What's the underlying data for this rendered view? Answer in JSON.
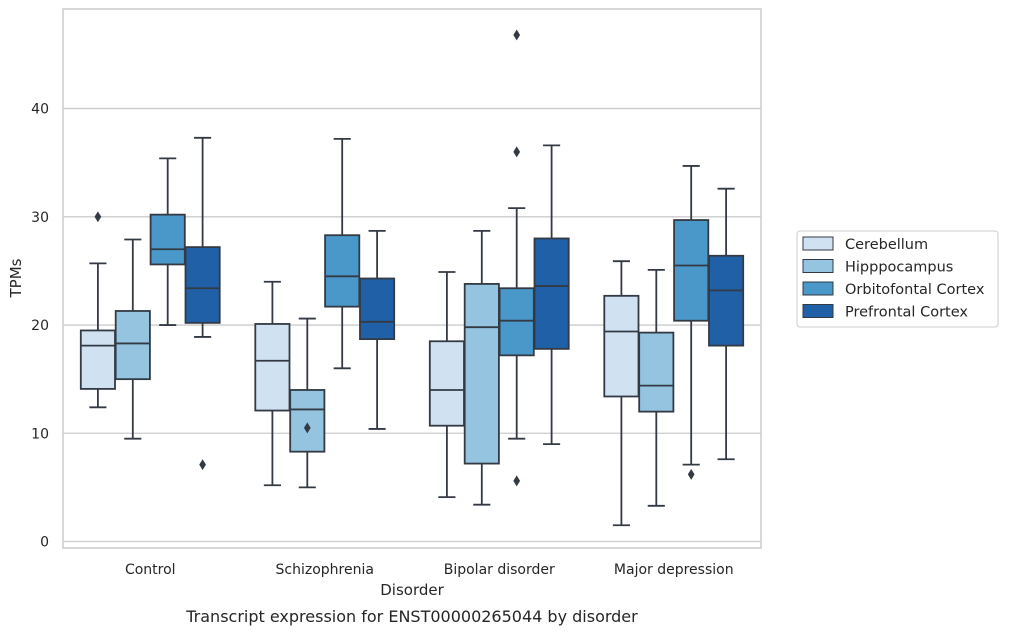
{
  "chart_data": {
    "type": "box",
    "title": "Transcript expression for ENST00000265044 by disorder",
    "xlabel": "Disorder",
    "ylabel": "TPMs",
    "ylim": [
      -0.6,
      49.2
    ],
    "yticks": [
      0,
      10,
      20,
      30,
      40
    ],
    "grid": "horizontal",
    "legend": "right",
    "categories": [
      "Control",
      "Schizophrenia",
      "Bipolar disorder",
      "Major depression"
    ],
    "series": [
      {
        "name": "Cerebellum",
        "color": "#d0e1f2",
        "boxes": [
          {
            "whislo": 12.4,
            "q1": 14.1,
            "med": 18.1,
            "q3": 19.5,
            "whishi": 25.7,
            "fliers": [
              30.0
            ]
          },
          {
            "whislo": 5.2,
            "q1": 12.1,
            "med": 16.7,
            "q3": 20.1,
            "whishi": 24.0,
            "fliers": []
          },
          {
            "whislo": 4.1,
            "q1": 10.7,
            "med": 14.0,
            "q3": 18.5,
            "whishi": 24.9,
            "fliers": []
          },
          {
            "whislo": 1.5,
            "q1": 13.4,
            "med": 19.4,
            "q3": 22.7,
            "whishi": 25.9,
            "fliers": []
          }
        ]
      },
      {
        "name": "Hipppocampus",
        "color": "#94c4df",
        "boxes": [
          {
            "whislo": 9.5,
            "q1": 15.0,
            "med": 18.3,
            "q3": 21.3,
            "whishi": 27.9,
            "fliers": []
          },
          {
            "whislo": 5.0,
            "q1": 8.3,
            "med": 12.2,
            "q3": 14.0,
            "whishi": 20.6,
            "fliers": [
              10.5
            ]
          },
          {
            "whislo": 3.4,
            "q1": 7.2,
            "med": 19.8,
            "q3": 23.8,
            "whishi": 28.7,
            "fliers": []
          },
          {
            "whislo": 3.3,
            "q1": 12.0,
            "med": 14.4,
            "q3": 19.3,
            "whishi": 25.1,
            "fliers": []
          }
        ]
      },
      {
        "name": "Orbitofontal Cortex",
        "color": "#4a98c9",
        "boxes": [
          {
            "whislo": 20.0,
            "q1": 25.6,
            "med": 27.0,
            "q3": 30.2,
            "whishi": 35.4,
            "fliers": []
          },
          {
            "whislo": 16.0,
            "q1": 21.7,
            "med": 24.5,
            "q3": 28.3,
            "whishi": 37.2,
            "fliers": []
          },
          {
            "whislo": 9.5,
            "q1": 17.2,
            "med": 20.4,
            "q3": 23.4,
            "whishi": 30.8,
            "fliers": [
              36.0,
              5.6,
              46.8
            ]
          },
          {
            "whislo": 7.1,
            "q1": 20.4,
            "med": 25.5,
            "q3": 29.7,
            "whishi": 34.7,
            "fliers": [
              6.2
            ]
          }
        ]
      },
      {
        "name": "Prefrontal Cortex",
        "color": "#2060a7",
        "boxes": [
          {
            "whislo": 18.9,
            "q1": 20.2,
            "med": 23.4,
            "q3": 27.2,
            "whishi": 37.3,
            "fliers": [
              7.1
            ]
          },
          {
            "whislo": 10.4,
            "q1": 18.7,
            "med": 20.3,
            "q3": 24.3,
            "whishi": 28.7,
            "fliers": []
          },
          {
            "whislo": 9.0,
            "q1": 17.8,
            "med": 23.6,
            "q3": 28.0,
            "whishi": 36.6,
            "fliers": []
          },
          {
            "whislo": 7.6,
            "q1": 18.1,
            "med": 23.2,
            "q3": 26.4,
            "whishi": 32.6,
            "fliers": []
          }
        ]
      }
    ]
  }
}
